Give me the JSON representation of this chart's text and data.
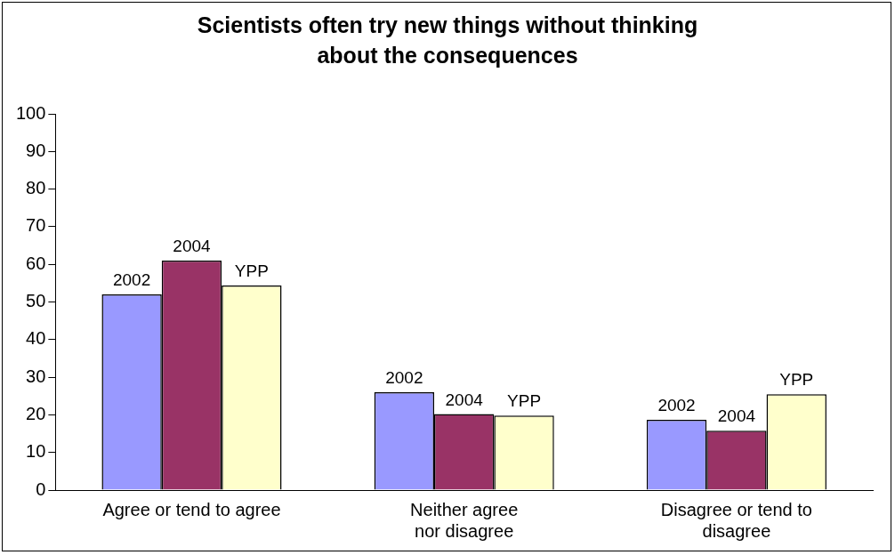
{
  "chart_data": {
    "type": "bar",
    "title": "Scientists often try new things without thinking about the consequences",
    "categories": [
      "Agree or tend to agree",
      "Neither agree nor disagree",
      "Disagree or tend to disagree"
    ],
    "series": [
      {
        "name": "2002",
        "color": "#9999ff",
        "values": [
          52,
          26,
          18.7
        ]
      },
      {
        "name": "2004",
        "color": "#993366",
        "values": [
          61,
          20.2,
          15.8
        ]
      },
      {
        "name": "YPP",
        "color": "#ffffcc",
        "values": [
          54.4,
          19.8,
          25.5
        ]
      }
    ],
    "ylim": [
      0,
      100
    ],
    "yticks": [
      0,
      10,
      20,
      30,
      40,
      50,
      60,
      70,
      80,
      90,
      100
    ],
    "grid": false,
    "legend": false
  }
}
